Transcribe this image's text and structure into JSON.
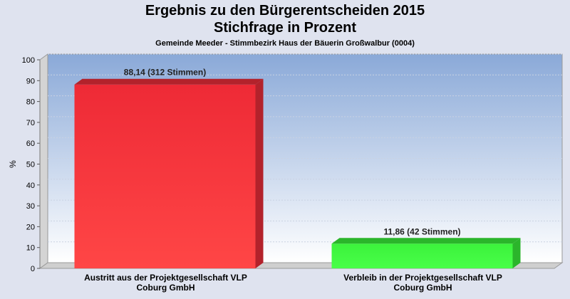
{
  "chart_data": {
    "type": "bar",
    "title": "Ergebnis zu den Bürgerentscheiden 2015",
    "title2": "Stichfrage in Prozent",
    "subtitle": "Gemeinde Meeder - Stimmbezirk Haus der Bäuerin Großwalbur (0004)",
    "ylabel": "%",
    "ylim": [
      0,
      100
    ],
    "yticks": [
      0,
      10,
      20,
      30,
      40,
      50,
      60,
      70,
      80,
      90,
      100
    ],
    "grid": true,
    "categories": [
      [
        "Austritt aus der Projektgesellschaft VLP",
        "Coburg GmbH"
      ],
      [
        "Verbleib in der Projektgesellschaft VLP",
        "Coburg GmbH"
      ]
    ],
    "values": [
      88.14,
      11.86
    ],
    "data_labels": [
      "88,14 (312 Stimmen)",
      "11,86 (42 Stimmen)"
    ],
    "colors": [
      "#ee2a36",
      "#3cf23c"
    ],
    "colors_dark": [
      "#b3222b",
      "#2bb52b"
    ]
  }
}
